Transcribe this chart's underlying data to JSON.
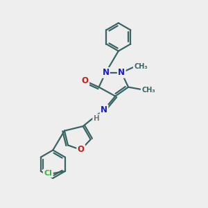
{
  "bg_color": "#eeeeee",
  "bond_color": "#3a6464",
  "bond_width": 1.6,
  "atom_colors": {
    "N": "#1a1acc",
    "O": "#cc1a1a",
    "Cl": "#3db33d",
    "H": "#777777",
    "C": "#3a6464"
  },
  "fig_width": 3.0,
  "fig_height": 3.0,
  "dpi": 100
}
